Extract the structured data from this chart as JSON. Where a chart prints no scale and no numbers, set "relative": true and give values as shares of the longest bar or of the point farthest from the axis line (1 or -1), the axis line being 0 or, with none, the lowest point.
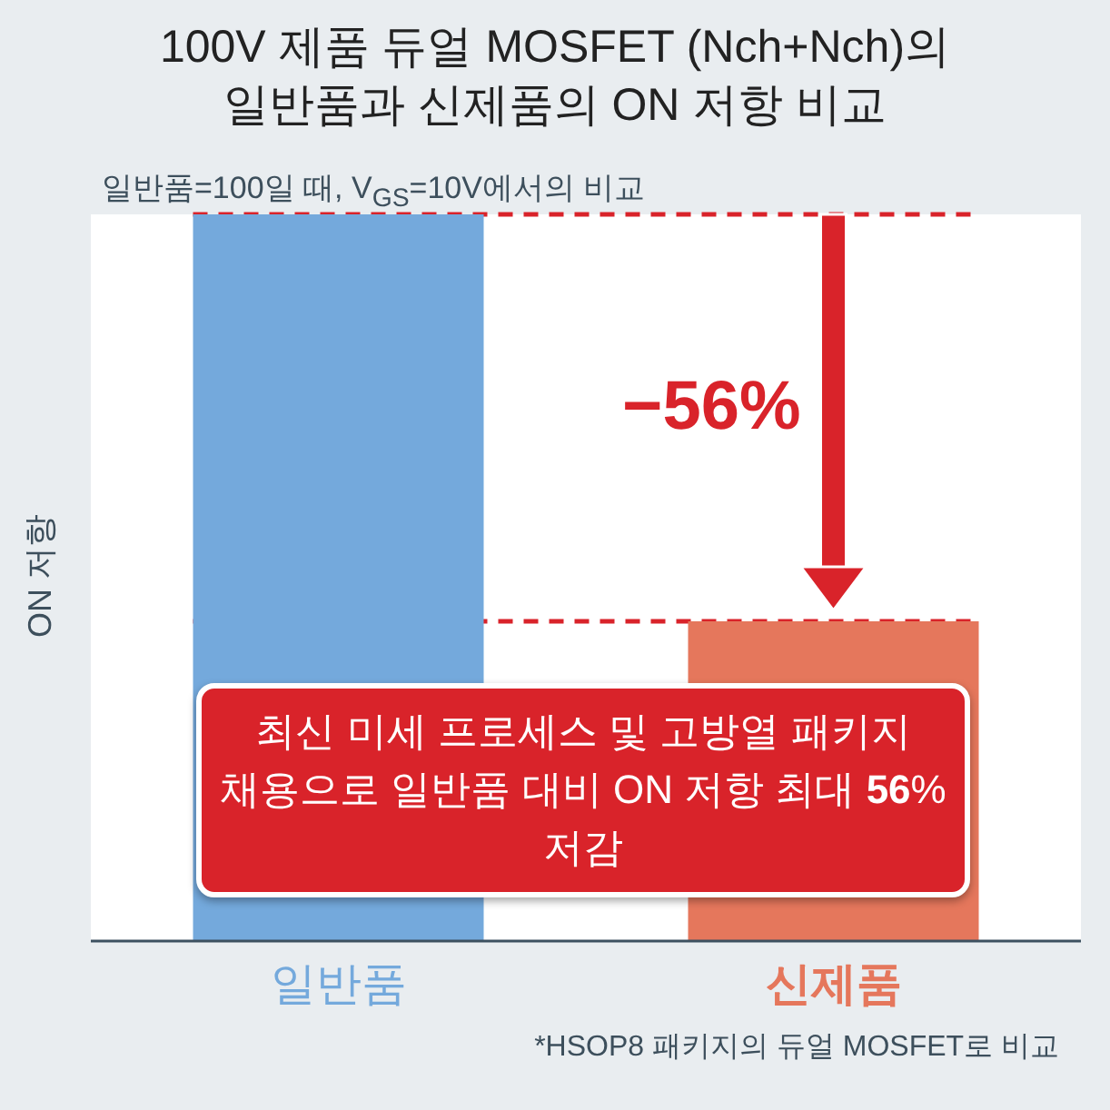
{
  "chart_data": {
    "type": "bar",
    "title": "100V 제품 듀얼 MOSFET (Nch+Nch)의 일반품과 신제품의 ON 저항 비교",
    "subtitle": "일반품=100일 때, V$_{GS}$=10V에서의 비교",
    "ylabel": "ON 저항",
    "categories": [
      "일반품",
      "신제품"
    ],
    "values": [
      1,
      0.44
    ],
    "colors": [
      "#74a9dc",
      "#e5775c"
    ],
    "relative": true,
    "ref_lines": [
      {
        "axis": "y",
        "value": 1,
        "color": "#d9232a",
        "line_style": "dashed"
      },
      {
        "axis": "y",
        "value": 0.44,
        "color": "#d9232a",
        "line_style": "dashed"
      }
    ],
    "annotations": [
      "−56%",
      "최신 미세 프로세스 및 고방열 패키지 채용으로 일반품 대비 ON 저항 최대 **56**% 저감",
      "*HSOP8 패키지의 듀얼 MOSFET로 비교"
    ]
  }
}
